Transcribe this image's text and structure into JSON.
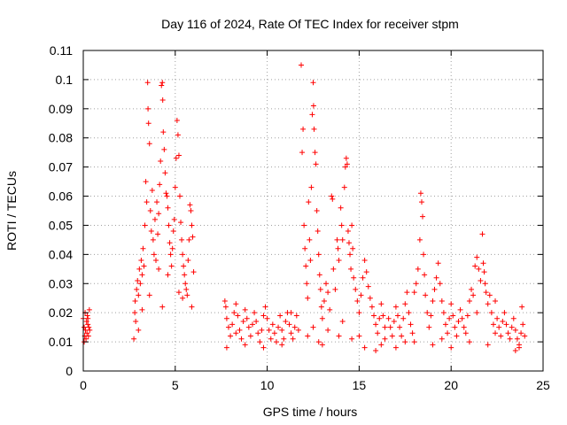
{
  "chart_data": {
    "type": "scatter",
    "title": "Day 116 of 2024, Rate Of TEC Index for receiver stpm",
    "xlabel": "GPS time / hours",
    "ylabel": "ROTI / TECUs",
    "xlim": [
      0,
      25
    ],
    "ylim": [
      0,
      0.11
    ],
    "xticks": [
      "0",
      "5",
      "10",
      "15",
      "20",
      "25"
    ],
    "yticks": [
      "0",
      "0.01",
      "0.02",
      "0.03",
      "0.04",
      "0.05",
      "0.06",
      "0.07",
      "0.08",
      "0.09",
      "0.1",
      "0.11"
    ],
    "grid": true,
    "marker": "+",
    "color": "#ff0000",
    "series": [
      {
        "points": [
          [
            0.0,
            0.018
          ],
          [
            0.05,
            0.015
          ],
          [
            0.08,
            0.012
          ],
          [
            0.1,
            0.02
          ],
          [
            0.12,
            0.014
          ],
          [
            0.15,
            0.011
          ],
          [
            0.18,
            0.017
          ],
          [
            0.2,
            0.013
          ],
          [
            0.22,
            0.019
          ],
          [
            0.25,
            0.016
          ],
          [
            0.28,
            0.012
          ],
          [
            0.3,
            0.015
          ],
          [
            0.33,
            0.021
          ],
          [
            0.35,
            0.014
          ],
          [
            0.05,
            0.01
          ],
          [
            0.25,
            0.018
          ],
          [
            2.75,
            0.011
          ],
          [
            2.8,
            0.02
          ],
          [
            2.82,
            0.024
          ],
          [
            2.85,
            0.017
          ],
          [
            2.9,
            0.028
          ],
          [
            2.95,
            0.031
          ],
          [
            3.0,
            0.026
          ],
          [
            3.05,
            0.035
          ],
          [
            3.1,
            0.03
          ],
          [
            3.15,
            0.038
          ],
          [
            3.2,
            0.033
          ],
          [
            3.25,
            0.042
          ],
          [
            3.3,
            0.036
          ],
          [
            3.35,
            0.05
          ],
          [
            3.4,
            0.065
          ],
          [
            3.45,
            0.058
          ],
          [
            3.5,
            0.099
          ],
          [
            3.52,
            0.09
          ],
          [
            3.55,
            0.085
          ],
          [
            3.6,
            0.078
          ],
          [
            3.65,
            0.055
          ],
          [
            3.7,
            0.048
          ],
          [
            3.75,
            0.062
          ],
          [
            3.8,
            0.045
          ],
          [
            3.85,
            0.04
          ],
          [
            3.9,
            0.052
          ],
          [
            3.95,
            0.038
          ],
          [
            4.0,
            0.058
          ],
          [
            4.05,
            0.047
          ],
          [
            4.1,
            0.054
          ],
          [
            4.15,
            0.064
          ],
          [
            4.2,
            0.072
          ],
          [
            4.25,
            0.098
          ],
          [
            4.3,
            0.099
          ],
          [
            4.32,
            0.093
          ],
          [
            4.35,
            0.082
          ],
          [
            4.4,
            0.076
          ],
          [
            4.45,
            0.068
          ],
          [
            4.5,
            0.061
          ],
          [
            4.55,
            0.06
          ],
          [
            4.6,
            0.056
          ],
          [
            4.65,
            0.05
          ],
          [
            4.7,
            0.044
          ],
          [
            4.75,
            0.04
          ],
          [
            4.8,
            0.036
          ],
          [
            4.85,
            0.042
          ],
          [
            4.9,
            0.048
          ],
          [
            4.95,
            0.052
          ],
          [
            5.0,
            0.063
          ],
          [
            5.05,
            0.073
          ],
          [
            5.1,
            0.086
          ],
          [
            5.15,
            0.081
          ],
          [
            5.2,
            0.074
          ],
          [
            5.25,
            0.06
          ],
          [
            5.3,
            0.051
          ],
          [
            5.35,
            0.045
          ],
          [
            5.4,
            0.04
          ],
          [
            5.45,
            0.036
          ],
          [
            5.5,
            0.033
          ],
          [
            5.55,
            0.03
          ],
          [
            5.6,
            0.028
          ],
          [
            5.65,
            0.026
          ],
          [
            5.7,
            0.038
          ],
          [
            5.75,
            0.045
          ],
          [
            5.8,
            0.057
          ],
          [
            5.85,
            0.055
          ],
          [
            5.9,
            0.05
          ],
          [
            5.95,
            0.046
          ],
          [
            6.0,
            0.034
          ],
          [
            5.4,
            0.025
          ],
          [
            4.3,
            0.022
          ],
          [
            3.6,
            0.026
          ],
          [
            3.0,
            0.014
          ],
          [
            3.2,
            0.021
          ],
          [
            5.2,
            0.027
          ],
          [
            5.9,
            0.022
          ],
          [
            4.6,
            0.033
          ],
          [
            4.1,
            0.035
          ],
          [
            7.7,
            0.024
          ],
          [
            7.75,
            0.022
          ],
          [
            7.8,
            0.018
          ],
          [
            7.9,
            0.015
          ],
          [
            8.0,
            0.012
          ],
          [
            8.1,
            0.016
          ],
          [
            8.2,
            0.02
          ],
          [
            8.3,
            0.023
          ],
          [
            8.4,
            0.019
          ],
          [
            8.5,
            0.014
          ],
          [
            8.6,
            0.011
          ],
          [
            8.7,
            0.017
          ],
          [
            8.8,
            0.021
          ],
          [
            8.9,
            0.018
          ],
          [
            9.0,
            0.015
          ],
          [
            9.1,
            0.012
          ],
          [
            9.2,
            0.016
          ],
          [
            9.3,
            0.02
          ],
          [
            9.4,
            0.017
          ],
          [
            9.5,
            0.013
          ],
          [
            9.6,
            0.01
          ],
          [
            9.7,
            0.014
          ],
          [
            9.8,
            0.019
          ],
          [
            9.9,
            0.022
          ],
          [
            10.0,
            0.018
          ],
          [
            10.1,
            0.014
          ],
          [
            10.2,
            0.011
          ],
          [
            10.3,
            0.016
          ],
          [
            10.4,
            0.013
          ],
          [
            10.5,
            0.01
          ],
          [
            10.6,
            0.015
          ],
          [
            10.7,
            0.019
          ],
          [
            10.8,
            0.014
          ],
          [
            10.9,
            0.011
          ],
          [
            11.0,
            0.017
          ],
          [
            11.1,
            0.02
          ],
          [
            11.2,
            0.016
          ],
          [
            11.3,
            0.013
          ],
          [
            11.4,
            0.011
          ],
          [
            11.5,
            0.015
          ],
          [
            11.6,
            0.019
          ],
          [
            11.7,
            0.014
          ],
          [
            7.8,
            0.008
          ],
          [
            8.8,
            0.009
          ],
          [
            9.8,
            0.008
          ],
          [
            10.8,
            0.009
          ],
          [
            11.3,
            0.02
          ],
          [
            8.3,
            0.013
          ],
          [
            11.85,
            0.105
          ],
          [
            11.9,
            0.075
          ],
          [
            11.95,
            0.083
          ],
          [
            12.0,
            0.05
          ],
          [
            12.05,
            0.042
          ],
          [
            12.1,
            0.036
          ],
          [
            12.15,
            0.03
          ],
          [
            12.2,
            0.025
          ],
          [
            12.25,
            0.058
          ],
          [
            12.3,
            0.045
          ],
          [
            12.35,
            0.038
          ],
          [
            12.4,
            0.063
          ],
          [
            12.45,
            0.088
          ],
          [
            12.5,
            0.099
          ],
          [
            12.52,
            0.091
          ],
          [
            12.55,
            0.083
          ],
          [
            12.6,
            0.075
          ],
          [
            12.65,
            0.071
          ],
          [
            12.7,
            0.055
          ],
          [
            12.75,
            0.048
          ],
          [
            12.8,
            0.04
          ],
          [
            12.85,
            0.033
          ],
          [
            12.9,
            0.028
          ],
          [
            12.95,
            0.022
          ],
          [
            13.0,
            0.018
          ],
          [
            13.1,
            0.024
          ],
          [
            13.2,
            0.03
          ],
          [
            13.3,
            0.027
          ],
          [
            13.4,
            0.021
          ],
          [
            13.5,
            0.06
          ],
          [
            13.55,
            0.059
          ],
          [
            13.6,
            0.035
          ],
          [
            13.7,
            0.028
          ],
          [
            13.8,
            0.045
          ],
          [
            13.85,
            0.042
          ],
          [
            13.9,
            0.038
          ],
          [
            14.0,
            0.056
          ],
          [
            14.05,
            0.05
          ],
          [
            14.1,
            0.045
          ],
          [
            14.2,
            0.063
          ],
          [
            14.25,
            0.07
          ],
          [
            14.3,
            0.073
          ],
          [
            14.35,
            0.071
          ],
          [
            14.4,
            0.048
          ],
          [
            14.45,
            0.044
          ],
          [
            14.5,
            0.04
          ],
          [
            14.55,
            0.035
          ],
          [
            14.6,
            0.05
          ],
          [
            14.65,
            0.042
          ],
          [
            14.7,
            0.032
          ],
          [
            14.8,
            0.028
          ],
          [
            14.9,
            0.024
          ],
          [
            15.0,
            0.02
          ],
          [
            15.1,
            0.026
          ],
          [
            15.2,
            0.032
          ],
          [
            15.3,
            0.038
          ],
          [
            15.4,
            0.034
          ],
          [
            15.5,
            0.029
          ],
          [
            15.6,
            0.025
          ],
          [
            15.7,
            0.022
          ],
          [
            15.8,
            0.019
          ],
          [
            15.9,
            0.016
          ],
          [
            16.0,
            0.013
          ],
          [
            16.1,
            0.018
          ],
          [
            16.2,
            0.023
          ],
          [
            16.3,
            0.019
          ],
          [
            16.4,
            0.015
          ],
          [
            12.2,
            0.012
          ],
          [
            12.8,
            0.01
          ],
          [
            13.3,
            0.014
          ],
          [
            13.9,
            0.012
          ],
          [
            14.6,
            0.011
          ],
          [
            15.3,
            0.008
          ],
          [
            15.9,
            0.007
          ],
          [
            16.2,
            0.009
          ],
          [
            16.4,
            0.011
          ],
          [
            12.5,
            0.015
          ],
          [
            13.0,
            0.009
          ],
          [
            14.1,
            0.017
          ],
          [
            15.0,
            0.012
          ],
          [
            16.6,
            0.018
          ],
          [
            16.7,
            0.015
          ],
          [
            16.8,
            0.012
          ],
          [
            16.9,
            0.017
          ],
          [
            17.0,
            0.022
          ],
          [
            17.1,
            0.019
          ],
          [
            17.2,
            0.015
          ],
          [
            17.3,
            0.012
          ],
          [
            17.4,
            0.018
          ],
          [
            17.5,
            0.023
          ],
          [
            17.6,
            0.027
          ],
          [
            17.7,
            0.02
          ],
          [
            17.8,
            0.016
          ],
          [
            17.9,
            0.013
          ],
          [
            18.0,
            0.027
          ],
          [
            18.1,
            0.03
          ],
          [
            18.2,
            0.035
          ],
          [
            18.3,
            0.045
          ],
          [
            18.35,
            0.061
          ],
          [
            18.4,
            0.058
          ],
          [
            18.45,
            0.053
          ],
          [
            18.5,
            0.04
          ],
          [
            18.55,
            0.033
          ],
          [
            18.6,
            0.026
          ],
          [
            18.7,
            0.02
          ],
          [
            18.8,
            0.015
          ],
          [
            18.9,
            0.019
          ],
          [
            19.0,
            0.024
          ],
          [
            19.1,
            0.028
          ],
          [
            19.2,
            0.032
          ],
          [
            19.3,
            0.037
          ],
          [
            19.4,
            0.03
          ],
          [
            19.5,
            0.024
          ],
          [
            19.6,
            0.02
          ],
          [
            19.7,
            0.016
          ],
          [
            19.8,
            0.013
          ],
          [
            19.9,
            0.018
          ],
          [
            20.0,
            0.023
          ],
          [
            20.1,
            0.019
          ],
          [
            20.2,
            0.015
          ],
          [
            20.3,
            0.012
          ],
          [
            20.4,
            0.017
          ],
          [
            20.5,
            0.021
          ],
          [
            20.6,
            0.018
          ],
          [
            20.7,
            0.015
          ],
          [
            20.8,
            0.013
          ],
          [
            20.9,
            0.019
          ],
          [
            21.0,
            0.024
          ],
          [
            21.1,
            0.028
          ],
          [
            21.2,
            0.026
          ],
          [
            21.3,
            0.036
          ],
          [
            21.4,
            0.039
          ],
          [
            21.5,
            0.035
          ],
          [
            21.6,
            0.031
          ],
          [
            21.7,
            0.047
          ],
          [
            21.75,
            0.037
          ],
          [
            21.8,
            0.034
          ],
          [
            21.85,
            0.03
          ],
          [
            21.9,
            0.027
          ],
          [
            22.0,
            0.023
          ],
          [
            22.1,
            0.026
          ],
          [
            22.2,
            0.02
          ],
          [
            22.3,
            0.016
          ],
          [
            22.4,
            0.013
          ],
          [
            22.5,
            0.018
          ],
          [
            22.6,
            0.015
          ],
          [
            22.7,
            0.012
          ],
          [
            22.8,
            0.017
          ],
          [
            22.9,
            0.02
          ],
          [
            23.0,
            0.016
          ],
          [
            23.1,
            0.013
          ],
          [
            23.2,
            0.011
          ],
          [
            23.3,
            0.015
          ],
          [
            23.4,
            0.018
          ],
          [
            23.5,
            0.014
          ],
          [
            23.6,
            0.011
          ],
          [
            23.7,
            0.009
          ],
          [
            23.8,
            0.013
          ],
          [
            23.85,
            0.022
          ],
          [
            23.9,
            0.016
          ],
          [
            24.0,
            0.012
          ],
          [
            17.0,
            0.008
          ],
          [
            18.0,
            0.01
          ],
          [
            19.0,
            0.009
          ],
          [
            20.0,
            0.008
          ],
          [
            21.0,
            0.01
          ],
          [
            22.0,
            0.009
          ],
          [
            23.5,
            0.007
          ],
          [
            23.7,
            0.008
          ],
          [
            17.5,
            0.01
          ],
          [
            19.5,
            0.011
          ],
          [
            22.4,
            0.024
          ],
          [
            21.4,
            0.02
          ]
        ]
      }
    ]
  }
}
